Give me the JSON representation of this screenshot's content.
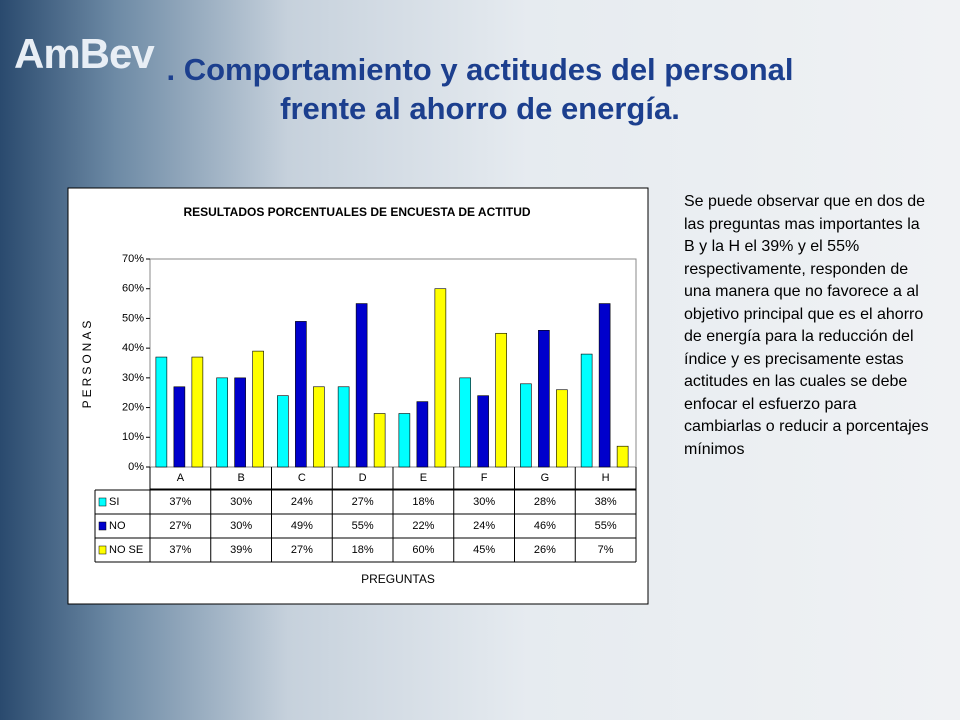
{
  "slide": {
    "logo": "AmBev",
    "title_lines": [
      ". Comportamiento y actitudes del personal",
      "frente al ahorro de energía."
    ],
    "body": "Se puede observar que en dos de las preguntas mas importantes la B y la H el 39% y el 55% respectivamente, responden de una manera que no favorece a al objetivo principal que es el ahorro de energía para la reducción del índice y es precisamente estas actitudes en las cuales se debe enfocar el esfuerzo para cambiarlas o reducir a porcentajes mínimos"
  },
  "chart_data": {
    "type": "bar",
    "title": "RESULTADOS PORCENTUALES DE ENCUESTA DE ACTITUD",
    "y_label": "PERSONAS",
    "x_label": "PREGUNTAS",
    "categories": [
      "A",
      "B",
      "C",
      "D",
      "E",
      "F",
      "G",
      "H"
    ],
    "series": [
      {
        "name": "SI",
        "color": "#00ffff",
        "values": [
          37,
          30,
          24,
          27,
          18,
          30,
          28,
          38
        ],
        "value_labels": [
          "37%",
          "30%",
          "24%",
          "27%",
          "18%",
          "30%",
          "28%",
          "38%"
        ]
      },
      {
        "name": "NO",
        "color": "#0000cc",
        "values": [
          27,
          30,
          49,
          55,
          22,
          24,
          46,
          55
        ],
        "value_labels": [
          "27%",
          "30%",
          "49%",
          "55%",
          "22%",
          "24%",
          "46%",
          "55%"
        ]
      },
      {
        "name": "NO SE",
        "color": "#ffff00",
        "values": [
          37,
          39,
          27,
          18,
          60,
          45,
          26,
          7
        ],
        "value_labels": [
          "37%",
          "39%",
          "27%",
          "18%",
          "60%",
          "45%",
          "26%",
          "7%"
        ]
      }
    ],
    "ylim": [
      0,
      70
    ],
    "yticks": [
      {
        "value": 0,
        "label": "0%"
      },
      {
        "value": 10,
        "label": "10%"
      },
      {
        "value": 20,
        "label": "20%"
      },
      {
        "value": 30,
        "label": "30%"
      },
      {
        "value": 40,
        "label": "40%"
      },
      {
        "value": 50,
        "label": "50%"
      },
      {
        "value": 60,
        "label": "60%"
      },
      {
        "value": 70,
        "label": "70%"
      }
    ],
    "grid": false
  }
}
